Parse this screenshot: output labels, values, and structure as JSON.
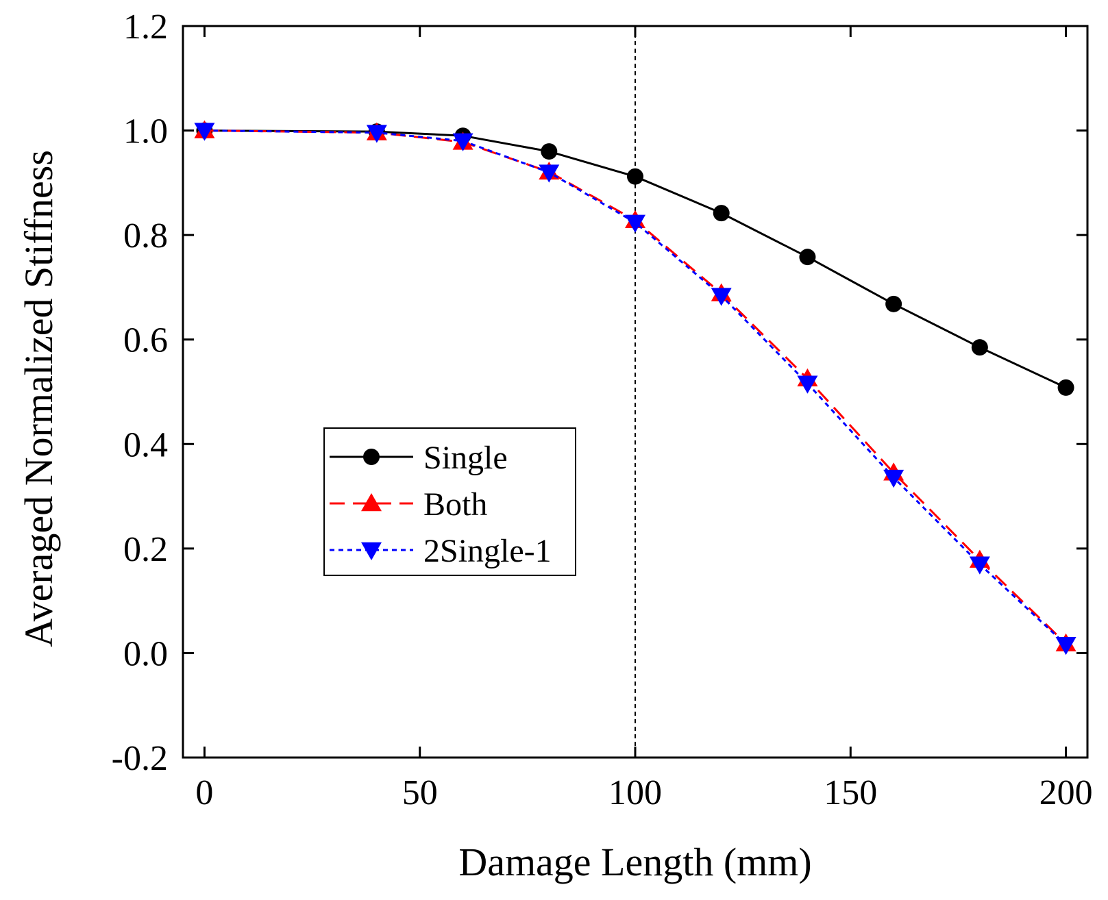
{
  "chart_data": {
    "type": "line",
    "title": "",
    "xlabel": "Damage Length (mm)",
    "ylabel": "Averaged Normalized Stiffness",
    "xlim": [
      -5,
      205
    ],
    "ylim": [
      -0.2,
      1.2
    ],
    "xticks": [
      0,
      50,
      100,
      150,
      200
    ],
    "xtick_labels": [
      "0",
      "50",
      "100",
      "150",
      "200"
    ],
    "yticks": [
      -0.2,
      0.0,
      0.2,
      0.4,
      0.6,
      0.8,
      1.0,
      1.2
    ],
    "ytick_labels": [
      "-0.2",
      "0.0",
      "0.2",
      "0.4",
      "0.6",
      "0.8",
      "1.0",
      "1.2"
    ],
    "grid": false,
    "legend_position": "lower-left-center",
    "reference_line": {
      "x": 100,
      "style": "dashed",
      "color": "#000000"
    },
    "x": [
      0,
      40,
      60,
      80,
      100,
      120,
      140,
      160,
      180,
      200
    ],
    "series": [
      {
        "name": "Single",
        "color": "#000000",
        "line": "solid",
        "marker": "circle",
        "values": [
          1.0,
          0.998,
          0.99,
          0.96,
          0.912,
          0.842,
          0.758,
          0.668,
          0.585,
          0.508
        ]
      },
      {
        "name": "Both",
        "color": "#ff0000",
        "line": "dashed",
        "marker": "triangle-up",
        "values": [
          1.0,
          0.996,
          0.978,
          0.921,
          0.828,
          0.688,
          0.525,
          0.345,
          0.178,
          0.018
        ]
      },
      {
        "name": "2Single-1",
        "color": "#0000ff",
        "line": "dotted",
        "marker": "triangle-down",
        "values": [
          1.0,
          0.996,
          0.98,
          0.92,
          0.824,
          0.684,
          0.516,
          0.336,
          0.17,
          0.016
        ]
      }
    ]
  }
}
